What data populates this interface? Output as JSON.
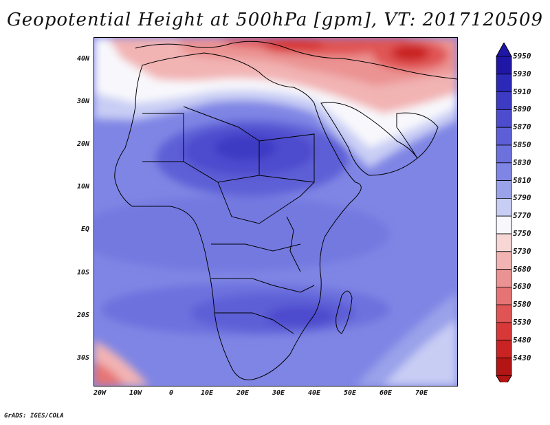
{
  "title": "Geopotential Height at 500hPa [gpm], VT: 2017120509",
  "footer": "GrADS: IGES/COLA",
  "map": {
    "lat_labels": [
      "40N",
      "30N",
      "20N",
      "10N",
      "EQ",
      "10S",
      "20S",
      "30S"
    ],
    "lon_labels": [
      "20W",
      "10W",
      "0",
      "10E",
      "20E",
      "30E",
      "40E",
      "50E",
      "60E",
      "70E"
    ]
  },
  "colorbar": {
    "levels": [
      "5950",
      "5930",
      "5910",
      "5890",
      "5870",
      "5850",
      "5830",
      "5810",
      "5790",
      "5770",
      "5750",
      "5730",
      "5680",
      "5630",
      "5580",
      "5530",
      "5480",
      "5430"
    ],
    "colors": [
      "#1f16a6",
      "#2c28b8",
      "#3d3ac4",
      "#4d4cce",
      "#5d5fd6",
      "#6d71de",
      "#7f85e4",
      "#9aa2ea",
      "#c8cdf4",
      "#f8f8fc",
      "#f7d6d6",
      "#f2b3b3",
      "#eb9393",
      "#e67474",
      "#e05454",
      "#d83838",
      "#c92323",
      "#b31414"
    ]
  }
}
